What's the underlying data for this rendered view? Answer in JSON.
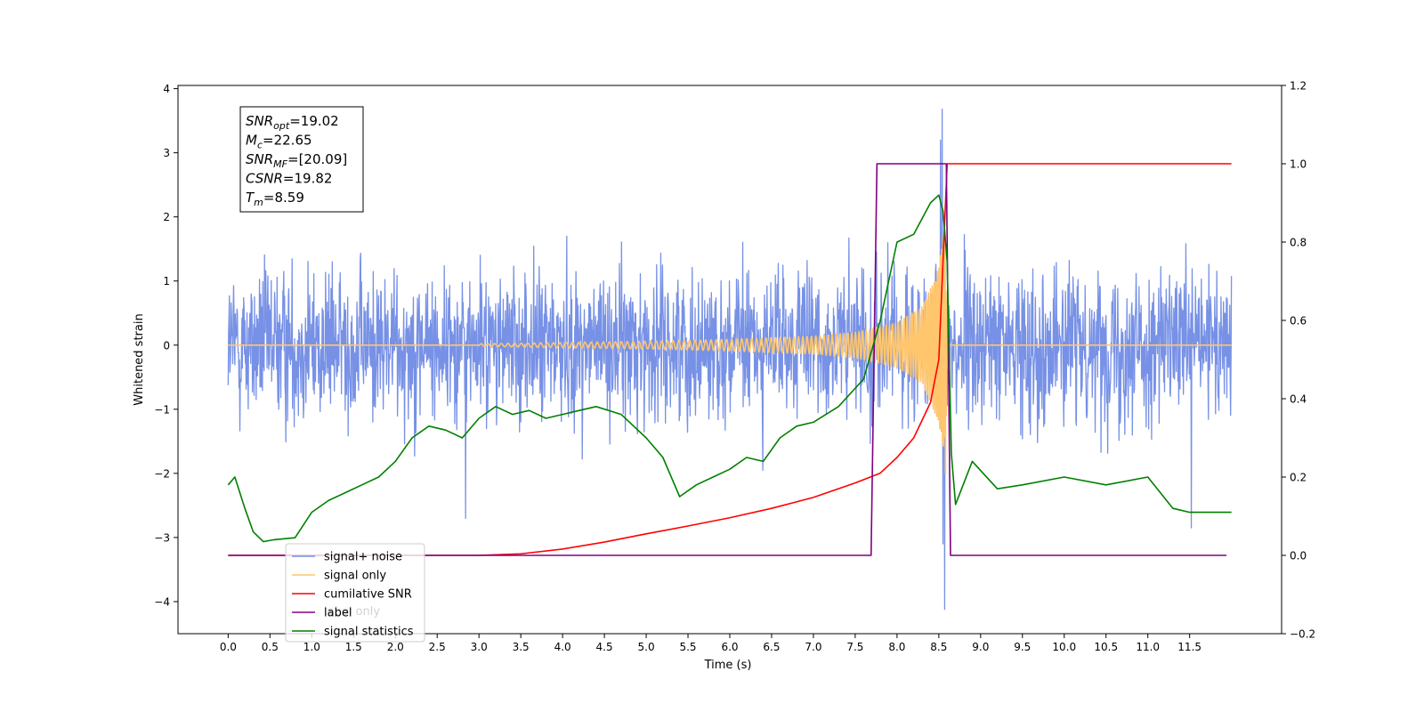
{
  "chart_data": {
    "type": "line",
    "xlabel": "Time (s)",
    "ylabel": "Whitened strain",
    "xlim": [
      -0.6,
      12.6
    ],
    "ylim": [
      -4.5,
      4.05
    ],
    "ylim_right": [
      -0.2,
      1.2
    ],
    "x_ticks": [
      0.0,
      0.5,
      1.0,
      1.5,
      2.0,
      2.5,
      3.0,
      3.5,
      4.0,
      4.5,
      5.0,
      5.5,
      6.0,
      6.5,
      7.0,
      7.5,
      8.0,
      8.5,
      9.0,
      9.5,
      10.0,
      10.5,
      11.0,
      11.5
    ],
    "x_tick_labels": [
      "0.0",
      "0.5",
      "1.0",
      "1.5",
      "2.0",
      "2.5",
      "3.0",
      "3.5",
      "4.0",
      "4.5",
      "5.0",
      "5.5",
      "6.0",
      "6.5",
      "7.0",
      "7.5",
      "8.0",
      "8.5",
      "9.0",
      "9.5",
      "10.0",
      "10.5",
      "11.0",
      "11.5"
    ],
    "y_ticks": [
      -4,
      -3,
      -2,
      -1,
      0,
      1,
      2,
      3,
      4
    ],
    "y_tick_labels": [
      "−4",
      "−3",
      "−2",
      "−1",
      "0",
      "1",
      "2",
      "3",
      "4"
    ],
    "y_ticks_right": [
      -0.2,
      0.0,
      0.2,
      0.4,
      0.6,
      0.8,
      1.0,
      1.2
    ],
    "y_tick_labels_right": [
      "−0.2",
      "0.0",
      "0.2",
      "0.4",
      "0.6",
      "0.8",
      "1.0",
      "1.2"
    ],
    "legend_placement": "lower-left",
    "legend": [
      {
        "label": "signal+ noise",
        "color": "#7791e6"
      },
      {
        "label": "signal only",
        "color": "#ffc66e"
      },
      {
        "label": "cumilative SNR",
        "color": "#ff0000"
      },
      {
        "label": "label",
        "color": "#800080"
      },
      {
        "label": "signal statistics",
        "color": "#008000"
      }
    ],
    "hidden_legend_text": "label only",
    "annotation": [
      {
        "base": "SNR",
        "sub": "opt",
        "value": "=19.02"
      },
      {
        "base": "M",
        "sub": "c",
        "value": "=22.65"
      },
      {
        "base": "SNR",
        "sub": "MF",
        "value": "=[20.09]"
      },
      {
        "base": "CSNR",
        "sub": "",
        "value": "=19.82"
      },
      {
        "base": "T",
        "sub": "m",
        "value": "=8.59"
      }
    ],
    "series": [
      {
        "name": "signal+ noise",
        "axis": "left",
        "color": "#7791e6",
        "kind": "noise",
        "x_range": [
          0.0,
          12.0
        ],
        "typical_envelope": [
          -1.5,
          1.5
        ],
        "extreme_points": [
          {
            "x": 8.54,
            "y": 3.68
          },
          {
            "x": 8.57,
            "y": -4.12
          },
          {
            "x": 8.52,
            "y": 3.2
          },
          {
            "x": 8.55,
            "y": -3.1
          },
          {
            "x": 2.84,
            "y": -2.7
          },
          {
            "x": 11.52,
            "y": -2.85
          }
        ]
      },
      {
        "name": "signal only",
        "axis": "left",
        "color": "#ffc66e",
        "kind": "chirp",
        "x_range": [
          0.0,
          12.0
        ],
        "merger_time": 8.6,
        "amplitude_samples": [
          [
            3.0,
            0.02
          ],
          [
            4.0,
            0.04
          ],
          [
            5.0,
            0.06
          ],
          [
            6.0,
            0.09
          ],
          [
            7.0,
            0.14
          ],
          [
            7.5,
            0.2
          ],
          [
            8.0,
            0.35
          ],
          [
            8.3,
            0.6
          ],
          [
            8.5,
            1.2
          ],
          [
            8.58,
            2.0
          ],
          [
            8.6,
            0.0
          ]
        ]
      },
      {
        "name": "cumilative SNR",
        "axis": "right",
        "color": "#ff0000",
        "x": [
          0.0,
          3.0,
          3.5,
          4.0,
          4.5,
          5.0,
          5.5,
          6.0,
          6.5,
          7.0,
          7.5,
          7.8,
          8.0,
          8.2,
          8.4,
          8.5,
          8.55,
          8.6,
          8.62,
          12.0
        ],
        "y": [
          0.0,
          0.0,
          0.004,
          0.016,
          0.034,
          0.055,
          0.075,
          0.096,
          0.12,
          0.148,
          0.185,
          0.21,
          0.25,
          0.3,
          0.39,
          0.5,
          0.75,
          1.0,
          1.0,
          1.0
        ]
      },
      {
        "name": "label",
        "axis": "right",
        "color": "#800080",
        "x": [
          0.0,
          7.69,
          7.76,
          8.59,
          8.64,
          11.94
        ],
        "y": [
          0.0,
          0.0,
          1.0,
          1.0,
          0.0,
          0.0
        ]
      },
      {
        "name": "signal statistics",
        "axis": "right",
        "color": "#008000",
        "x": [
          0.0,
          0.08,
          0.2,
          0.3,
          0.42,
          0.55,
          0.8,
          1.0,
          1.2,
          1.4,
          1.6,
          1.8,
          2.0,
          2.2,
          2.4,
          2.6,
          2.8,
          3.0,
          3.2,
          3.4,
          3.6,
          3.8,
          4.0,
          4.2,
          4.4,
          4.7,
          5.0,
          5.2,
          5.4,
          5.6,
          5.8,
          6.0,
          6.2,
          6.4,
          6.6,
          6.8,
          7.0,
          7.3,
          7.6,
          7.8,
          8.0,
          8.2,
          8.4,
          8.5,
          8.55,
          8.6,
          8.65,
          8.7,
          8.9,
          9.2,
          9.5,
          10.0,
          10.5,
          11.0,
          11.3,
          11.5,
          11.8,
          12.0
        ],
        "y": [
          0.18,
          0.2,
          0.12,
          0.06,
          0.035,
          0.04,
          0.045,
          0.11,
          0.14,
          0.16,
          0.18,
          0.2,
          0.24,
          0.3,
          0.33,
          0.32,
          0.3,
          0.35,
          0.38,
          0.36,
          0.37,
          0.35,
          0.36,
          0.37,
          0.38,
          0.36,
          0.3,
          0.25,
          0.15,
          0.18,
          0.2,
          0.22,
          0.25,
          0.24,
          0.3,
          0.33,
          0.34,
          0.38,
          0.45,
          0.6,
          0.8,
          0.82,
          0.9,
          0.92,
          0.88,
          0.75,
          0.26,
          0.13,
          0.24,
          0.17,
          0.18,
          0.2,
          0.18,
          0.2,
          0.12,
          0.11,
          0.11,
          0.11
        ]
      }
    ]
  }
}
